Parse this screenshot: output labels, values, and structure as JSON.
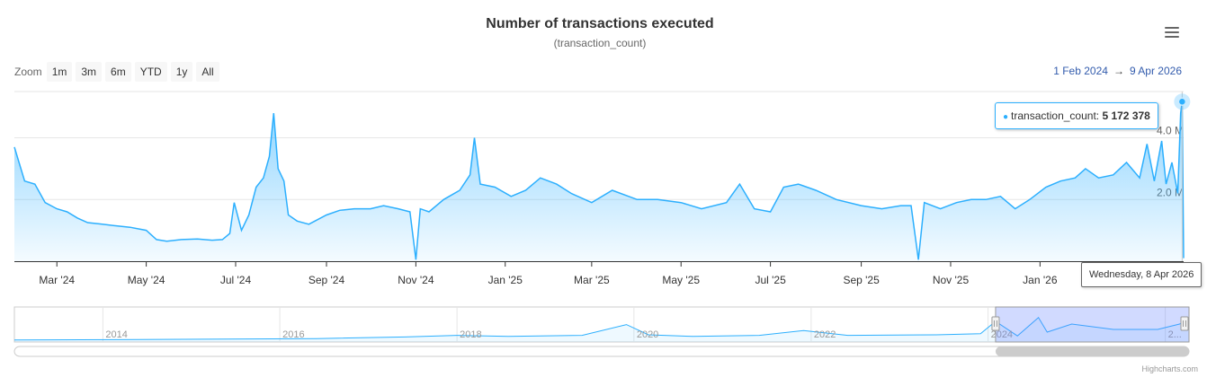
{
  "title": "Number of transactions executed",
  "subtitle": "(transaction_count)",
  "zoom": {
    "label": "Zoom",
    "buttons": [
      "1m",
      "3m",
      "6m",
      "YTD",
      "1y",
      "All"
    ]
  },
  "range": {
    "from": "1 Feb 2024",
    "arrow": "→",
    "to": "9 Apr 2026"
  },
  "tooltip": {
    "series": "transaction_count",
    "value": "5 172 378",
    "date": "Wednesday, 8 Apr 2026"
  },
  "credits": "Highcharts.com",
  "colors": {
    "series": "#2caffe",
    "navigator_mask": "#6685ff",
    "range_link": "#335cad"
  },
  "icons": {
    "menu": "hamburger-menu-icon"
  },
  "chart_data": {
    "type": "area",
    "series_name": "transaction_count",
    "x_range": [
      "2024-02-01",
      "2026-04-09"
    ],
    "y_range": [
      0,
      5500000
    ],
    "y_ticks": [
      {
        "value": 2000000,
        "label": "2.0 M"
      },
      {
        "value": 4000000,
        "label": "4.0 M"
      }
    ],
    "x_ticks": [
      {
        "date": "2024-03-01",
        "label": "Mar '24"
      },
      {
        "date": "2024-05-01",
        "label": "May '24"
      },
      {
        "date": "2024-07-01",
        "label": "Jul '24"
      },
      {
        "date": "2024-09-01",
        "label": "Sep '24"
      },
      {
        "date": "2024-11-01",
        "label": "Nov '24"
      },
      {
        "date": "2025-01-01",
        "label": "Jan '25"
      },
      {
        "date": "2025-03-01",
        "label": "Mar '25"
      },
      {
        "date": "2025-05-01",
        "label": "May '25"
      },
      {
        "date": "2025-07-01",
        "label": "Jul '25"
      },
      {
        "date": "2025-09-01",
        "label": "Sep '25"
      },
      {
        "date": "2025-11-01",
        "label": "Nov '25"
      },
      {
        "date": "2026-01-01",
        "label": "Jan '26"
      }
    ],
    "points": [
      [
        "2024-02-01",
        3700000
      ],
      [
        "2024-02-08",
        2600000
      ],
      [
        "2024-02-15",
        2500000
      ],
      [
        "2024-02-22",
        1900000
      ],
      [
        "2024-03-01",
        1700000
      ],
      [
        "2024-03-08",
        1600000
      ],
      [
        "2024-03-15",
        1400000
      ],
      [
        "2024-03-22",
        1250000
      ],
      [
        "2024-04-01",
        1200000
      ],
      [
        "2024-04-10",
        1150000
      ],
      [
        "2024-04-20",
        1100000
      ],
      [
        "2024-05-01",
        1000000
      ],
      [
        "2024-05-08",
        700000
      ],
      [
        "2024-05-15",
        650000
      ],
      [
        "2024-05-25",
        700000
      ],
      [
        "2024-06-05",
        720000
      ],
      [
        "2024-06-15",
        680000
      ],
      [
        "2024-06-22",
        700000
      ],
      [
        "2024-06-27",
        900000
      ],
      [
        "2024-06-30",
        1900000
      ],
      [
        "2024-07-05",
        1000000
      ],
      [
        "2024-07-10",
        1500000
      ],
      [
        "2024-07-15",
        2400000
      ],
      [
        "2024-07-20",
        2700000
      ],
      [
        "2024-07-24",
        3400000
      ],
      [
        "2024-07-27",
        4800000
      ],
      [
        "2024-07-30",
        3000000
      ],
      [
        "2024-08-03",
        2600000
      ],
      [
        "2024-08-06",
        1500000
      ],
      [
        "2024-08-12",
        1300000
      ],
      [
        "2024-08-20",
        1200000
      ],
      [
        "2024-09-01",
        1500000
      ],
      [
        "2024-09-10",
        1650000
      ],
      [
        "2024-09-20",
        1700000
      ],
      [
        "2024-10-01",
        1700000
      ],
      [
        "2024-10-10",
        1800000
      ],
      [
        "2024-10-20",
        1700000
      ],
      [
        "2024-10-28",
        1600000
      ],
      [
        "2024-11-01",
        50000
      ],
      [
        "2024-11-04",
        1700000
      ],
      [
        "2024-11-10",
        1600000
      ],
      [
        "2024-11-20",
        2000000
      ],
      [
        "2024-12-01",
        2300000
      ],
      [
        "2024-12-08",
        2800000
      ],
      [
        "2024-12-11",
        4000000
      ],
      [
        "2024-12-15",
        2500000
      ],
      [
        "2024-12-25",
        2400000
      ],
      [
        "2025-01-05",
        2100000
      ],
      [
        "2025-01-15",
        2300000
      ],
      [
        "2025-01-25",
        2700000
      ],
      [
        "2025-02-05",
        2500000
      ],
      [
        "2025-02-15",
        2200000
      ],
      [
        "2025-03-01",
        1900000
      ],
      [
        "2025-03-15",
        2300000
      ],
      [
        "2025-04-01",
        2000000
      ],
      [
        "2025-04-15",
        2000000
      ],
      [
        "2025-05-01",
        1900000
      ],
      [
        "2025-05-15",
        1700000
      ],
      [
        "2025-06-01",
        1900000
      ],
      [
        "2025-06-10",
        2500000
      ],
      [
        "2025-06-20",
        1700000
      ],
      [
        "2025-07-01",
        1600000
      ],
      [
        "2025-07-10",
        2400000
      ],
      [
        "2025-07-20",
        2500000
      ],
      [
        "2025-08-01",
        2300000
      ],
      [
        "2025-08-15",
        2000000
      ],
      [
        "2025-09-01",
        1800000
      ],
      [
        "2025-09-15",
        1700000
      ],
      [
        "2025-09-28",
        1800000
      ],
      [
        "2025-10-05",
        1800000
      ],
      [
        "2025-10-10",
        50000
      ],
      [
        "2025-10-14",
        1900000
      ],
      [
        "2025-10-25",
        1700000
      ],
      [
        "2025-11-05",
        1900000
      ],
      [
        "2025-11-15",
        2000000
      ],
      [
        "2025-11-25",
        2000000
      ],
      [
        "2025-12-05",
        2100000
      ],
      [
        "2025-12-15",
        1700000
      ],
      [
        "2025-12-25",
        2000000
      ],
      [
        "2026-01-05",
        2400000
      ],
      [
        "2026-01-15",
        2600000
      ],
      [
        "2026-01-25",
        2700000
      ],
      [
        "2026-02-01",
        3000000
      ],
      [
        "2026-02-10",
        2700000
      ],
      [
        "2026-02-20",
        2800000
      ],
      [
        "2026-03-01",
        3200000
      ],
      [
        "2026-03-10",
        2700000
      ],
      [
        "2026-03-15",
        3800000
      ],
      [
        "2026-03-20",
        2600000
      ],
      [
        "2026-03-25",
        3900000
      ],
      [
        "2026-03-28",
        2500000
      ],
      [
        "2026-04-01",
        3200000
      ],
      [
        "2026-04-05",
        2200000
      ],
      [
        "2026-04-07",
        4800000
      ],
      [
        "2026-04-08",
        5172378
      ],
      [
        "2026-04-09",
        100000
      ]
    ],
    "navigator": {
      "x_range": [
        "2013-01-01",
        "2026-04-09"
      ],
      "labels": [
        "2014",
        "2016",
        "2018",
        "2020",
        "2022",
        "2024",
        "2..."
      ],
      "label_dates": [
        "2014-01-01",
        "2016-01-01",
        "2018-01-01",
        "2020-01-01",
        "2022-01-01",
        "2024-01-01",
        "2026-01-01"
      ],
      "selected": [
        "2024-02-01",
        "2026-04-09"
      ],
      "points": [
        [
          "2013-01-01",
          30000
        ],
        [
          "2014-06-01",
          120000
        ],
        [
          "2015-06-01",
          200000
        ],
        [
          "2016-06-01",
          300000
        ],
        [
          "2017-06-01",
          600000
        ],
        [
          "2018-01-01",
          900000
        ],
        [
          "2018-08-01",
          700000
        ],
        [
          "2019-06-01",
          900000
        ],
        [
          "2019-12-01",
          2900000
        ],
        [
          "2020-03-01",
          1000000
        ],
        [
          "2020-09-01",
          700000
        ],
        [
          "2021-06-01",
          900000
        ],
        [
          "2021-12-01",
          1800000
        ],
        [
          "2022-06-01",
          900000
        ],
        [
          "2023-06-01",
          1000000
        ],
        [
          "2023-12-01",
          1200000
        ],
        [
          "2024-02-01",
          3500000
        ],
        [
          "2024-05-01",
          800000
        ],
        [
          "2024-07-27",
          4200000
        ],
        [
          "2024-09-01",
          1500000
        ],
        [
          "2024-12-11",
          3000000
        ],
        [
          "2025-06-01",
          2000000
        ],
        [
          "2025-12-01",
          2000000
        ],
        [
          "2026-03-01",
          3000000
        ],
        [
          "2026-04-08",
          4000000
        ]
      ]
    }
  }
}
